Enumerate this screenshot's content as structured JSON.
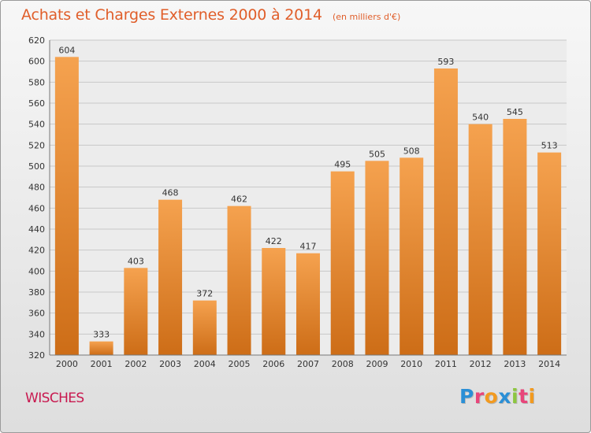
{
  "header": {
    "title": "Achats et Charges Externes 2000 à 2014",
    "subtitle": "(en milliers d'€)"
  },
  "commune": "WISCHES",
  "logo": {
    "text": "Proxiti",
    "letters": [
      {
        "ch": "P",
        "color": "#2a8fd6"
      },
      {
        "ch": "r",
        "color": "#e8457a"
      },
      {
        "ch": "o",
        "color": "#f29a1f"
      },
      {
        "ch": "x",
        "color": "#2a8fd6"
      },
      {
        "ch": "i",
        "color": "#8dc63f"
      },
      {
        "ch": "t",
        "color": "#e8457a"
      },
      {
        "ch": "i",
        "color": "#f29a1f"
      }
    ]
  },
  "colors": {
    "bar_top": "#f5a24f",
    "bar_bottom": "#cd6d17",
    "grid": "#c8c8c8",
    "text": "#333333"
  },
  "chart_data": {
    "type": "bar",
    "categories": [
      "2000",
      "2001",
      "2002",
      "2003",
      "2004",
      "2005",
      "2006",
      "2007",
      "2008",
      "2009",
      "2010",
      "2011",
      "2012",
      "2013",
      "2014"
    ],
    "values": [
      604,
      333,
      403,
      468,
      372,
      462,
      422,
      417,
      495,
      505,
      508,
      593,
      540,
      545,
      513
    ],
    "ylim": [
      320,
      620
    ],
    "yticks": [
      320,
      340,
      360,
      380,
      400,
      420,
      440,
      460,
      480,
      500,
      520,
      540,
      560,
      580,
      600,
      620
    ],
    "grid": true,
    "legend": "none"
  }
}
